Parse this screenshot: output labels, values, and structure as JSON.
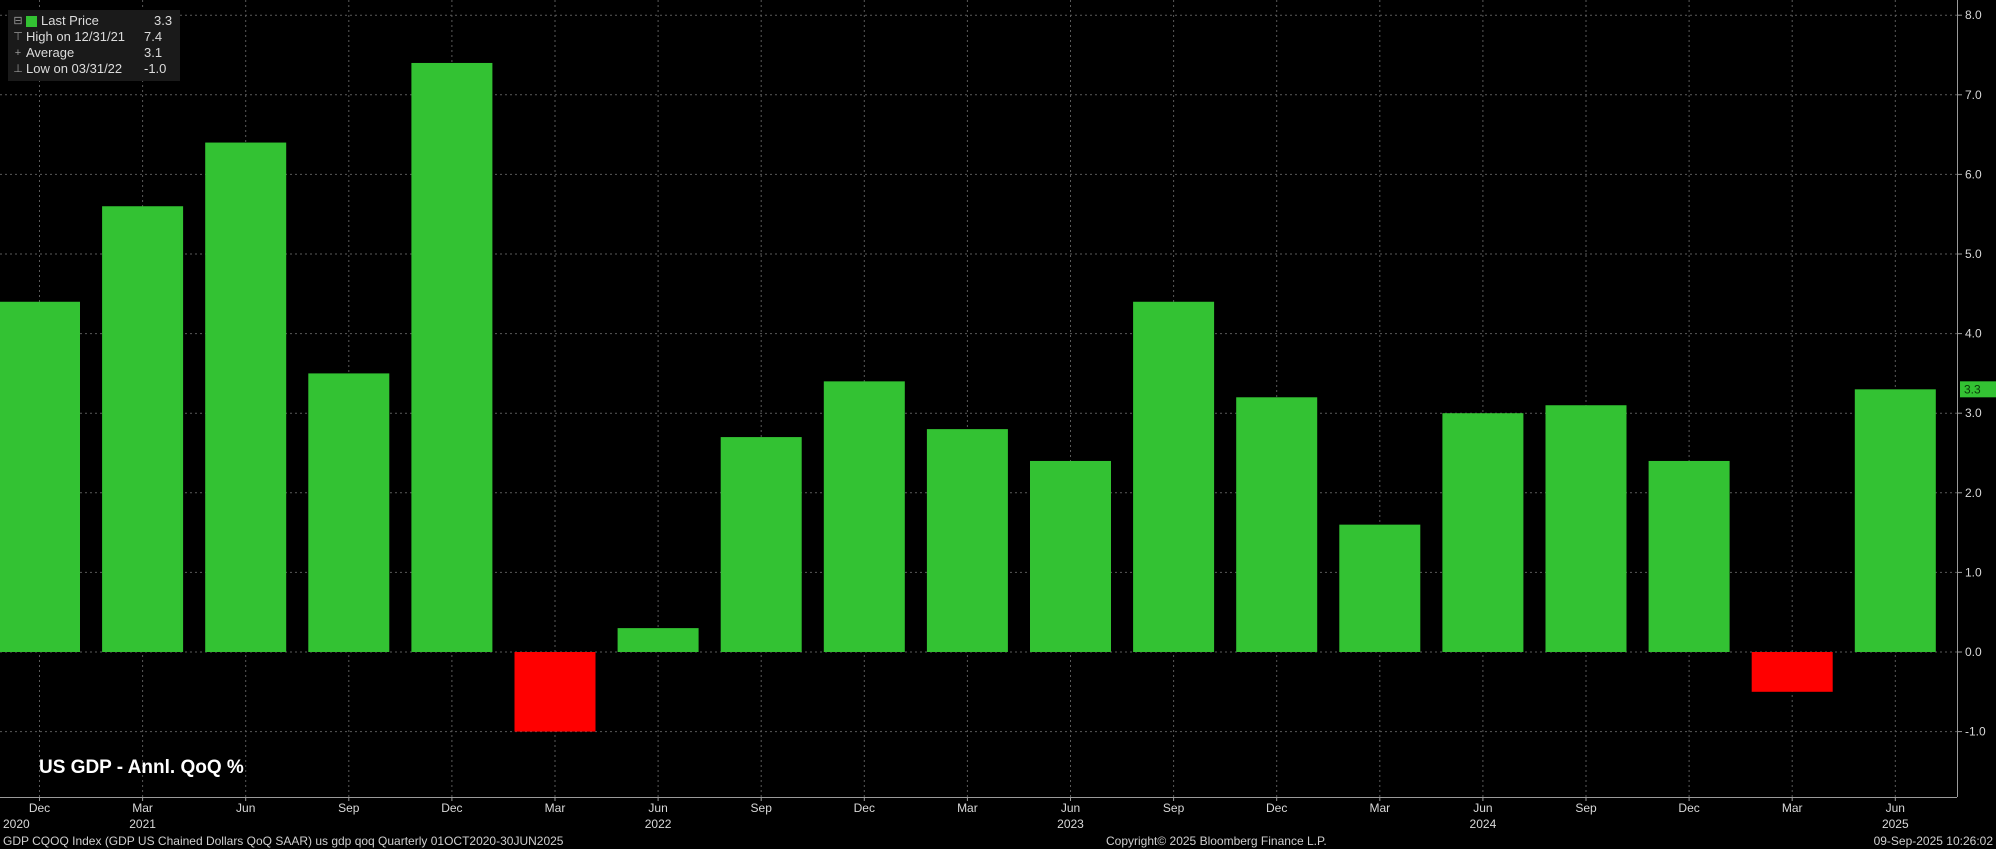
{
  "legend": {
    "last_price_label": "Last Price",
    "last_price_value": "3.3",
    "high_label": "High on 12/31/21",
    "high_value": "7.4",
    "average_label": "Average",
    "average_value": "3.1",
    "low_label": "Low on 03/31/22",
    "low_value": "-1.0",
    "positive_color": "#33c233",
    "negative_color": "#ff0000"
  },
  "title": "US GDP - Annl. QoQ %",
  "footer": {
    "description": "GDP CQOQ Index (GDP US Chained Dollars QoQ SAAR) us gdp qoq  Quarterly 01OCT2020-30JUN2025",
    "copyright": "Copyright© 2025 Bloomberg Finance L.P.",
    "timestamp": "09-Sep-2025 10:26:02"
  },
  "chart_data": {
    "type": "bar",
    "categories": [
      "Dec 2020",
      "Mar 2021",
      "Jun 2021",
      "Sep 2021",
      "Dec 2021",
      "Mar 2022",
      "Jun 2022",
      "Sep 2022",
      "Dec 2022",
      "Mar 2023",
      "Jun 2023",
      "Sep 2023",
      "Dec 2023",
      "Mar 2024",
      "Jun 2024",
      "Sep 2024",
      "Dec 2024",
      "Mar 2025",
      "Jun 2025"
    ],
    "values": [
      4.4,
      5.6,
      6.4,
      3.5,
      7.4,
      -1.0,
      0.3,
      2.7,
      3.4,
      2.8,
      2.4,
      4.4,
      3.2,
      1.6,
      3.0,
      3.1,
      2.4,
      -0.5,
      3.3
    ],
    "month_labels": [
      "Dec",
      "Mar",
      "Jun",
      "Sep",
      "Dec",
      "Mar",
      "Jun",
      "Sep",
      "Dec",
      "Mar",
      "Jun",
      "Sep",
      "Dec",
      "Mar",
      "Jun",
      "Sep",
      "Dec",
      "Mar",
      "Jun"
    ],
    "year_labels": [
      {
        "index": 0,
        "label": "2020"
      },
      {
        "index": 1,
        "label": "2021"
      },
      {
        "index": 6,
        "label": "2022"
      },
      {
        "index": 10,
        "label": "2023"
      },
      {
        "index": 14,
        "label": "2024"
      },
      {
        "index": 18,
        "label": "2025"
      }
    ],
    "y_ticks": [
      {
        "value": 8.0,
        "label": "8.0"
      },
      {
        "value": 7.0,
        "label": "7.0"
      },
      {
        "value": 6.0,
        "label": "6.0"
      },
      {
        "value": 5.0,
        "label": "5.0"
      },
      {
        "value": 4.0,
        "label": "4.0"
      },
      {
        "value": 3.0,
        "label": "3.0"
      },
      {
        "value": 2.0,
        "label": "2.0"
      },
      {
        "value": 1.0,
        "label": "1.0"
      },
      {
        "value": 0.0,
        "label": "0.0"
      },
      {
        "value": -1.0,
        "label": "-1.0"
      }
    ],
    "ylim": [
      -1.8,
      8.2
    ],
    "last_value_label": "3.3",
    "grid": true,
    "y_axis_side": "right"
  }
}
